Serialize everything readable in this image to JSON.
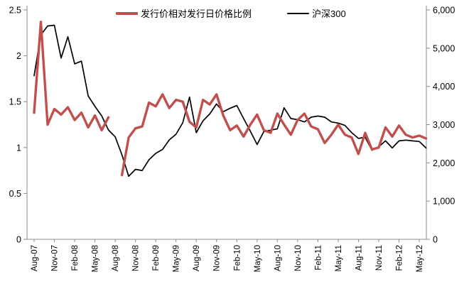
{
  "chart_data": {
    "type": "line",
    "title": "",
    "background": "#ffffff",
    "axis_color": "#8c8c8c",
    "label_color": "#000000",
    "grid": false,
    "legend_position": "top-center",
    "x_tick_labels": [
      "Aug-07",
      "Nov-07",
      "Feb-08",
      "May-08",
      "Aug-08",
      "Nov-08",
      "Feb-09",
      "May-09",
      "Aug-09",
      "Nov-09",
      "Feb-10",
      "May-10",
      "Aug-10",
      "Nov-10",
      "Feb-11",
      "May-11",
      "Aug-11",
      "Nov-11",
      "Feb-12",
      "May-12"
    ],
    "x_tick_every": 3,
    "left_axis": {
      "min": 0,
      "max": 2.5,
      "ticks": [
        "0",
        "0.5",
        "1",
        "1.5",
        "2",
        "2.5"
      ]
    },
    "right_axis": {
      "min": 0,
      "max": 6000,
      "ticks": [
        "0",
        "1,000",
        "2,000",
        "3,000",
        "4,000",
        "5,000",
        "6,000"
      ]
    },
    "series": [
      {
        "name": "发行价相对发行日价格比例",
        "axis": "left",
        "color": "#C0504D",
        "stroke_width": 3.4,
        "values": [
          1.38,
          2.37,
          1.25,
          1.42,
          1.36,
          1.44,
          1.3,
          1.38,
          1.22,
          1.35,
          1.19,
          1.33,
          null,
          0.7,
          1.11,
          1.21,
          1.23,
          1.49,
          1.45,
          1.58,
          1.43,
          1.52,
          1.5,
          1.28,
          1.22,
          1.52,
          1.47,
          1.58,
          1.35,
          1.19,
          1.24,
          1.12,
          1.25,
          1.36,
          1.19,
          1.16,
          1.37,
          1.25,
          1.14,
          1.3,
          1.37,
          1.23,
          1.2,
          1.05,
          1.14,
          1.25,
          1.14,
          1.11,
          0.93,
          1.16,
          0.98,
          1.0,
          1.22,
          1.12,
          1.24,
          1.14,
          1.11,
          1.13,
          1.1
        ]
      },
      {
        "name": "沪深300",
        "axis": "right",
        "color": "#000000",
        "stroke_width": 1.7,
        "values": [
          4280,
          5350,
          5580,
          5600,
          4740,
          5300,
          4590,
          4660,
          3750,
          3480,
          3230,
          2860,
          2680,
          2210,
          1650,
          1830,
          1800,
          2080,
          2250,
          2350,
          2600,
          2750,
          3050,
          3720,
          2790,
          3100,
          3280,
          3540,
          3340,
          3430,
          3500,
          3160,
          2830,
          2480,
          2820,
          2855,
          2890,
          3440,
          3160,
          3130,
          3070,
          3195,
          3225,
          3195,
          3070,
          3040,
          2980,
          2790,
          2640,
          2670,
          2330,
          2420,
          2575,
          2390,
          2575,
          2595,
          2575,
          2560,
          2390
        ]
      }
    ]
  }
}
